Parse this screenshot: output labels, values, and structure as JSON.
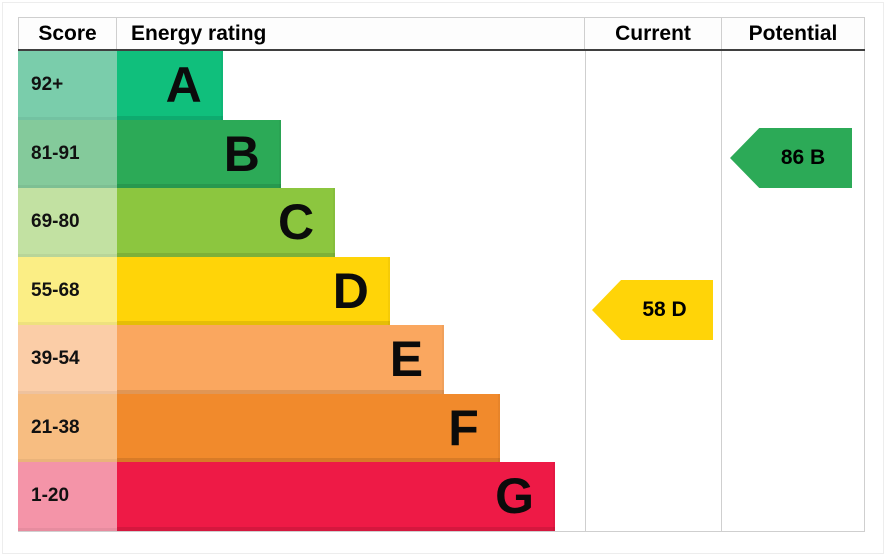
{
  "header": {
    "score": "Score",
    "rating": "Energy rating",
    "current": "Current",
    "potential": "Potential"
  },
  "bands": [
    {
      "letter": "A",
      "score": "92+",
      "bar_color": "#10bf7c",
      "tint_color": "#7acdab",
      "width_pct": 22.6
    },
    {
      "letter": "B",
      "score": "81-91",
      "bar_color": "#2caa57",
      "tint_color": "#84ca9b",
      "width_pct": 35.0
    },
    {
      "letter": "C",
      "score": "69-80",
      "bar_color": "#8cc63f",
      "tint_color": "#c2e1a2",
      "width_pct": 46.6
    },
    {
      "letter": "D",
      "score": "55-68",
      "bar_color": "#ffd408",
      "tint_color": "#fbee85",
      "width_pct": 58.3
    },
    {
      "letter": "E",
      "score": "39-54",
      "bar_color": "#faa75f",
      "tint_color": "#fbcda7",
      "width_pct": 69.9
    },
    {
      "letter": "F",
      "score": "21-38",
      "bar_color": "#f18a2c",
      "tint_color": "#f7bd81",
      "width_pct": 81.8
    },
    {
      "letter": "G",
      "score": "1-20",
      "bar_color": "#ee1a46",
      "tint_color": "#f494a8",
      "width_pct": 93.6
    }
  ],
  "current": {
    "label": "58 D",
    "value": 58,
    "band": "D",
    "color": "#ffd408"
  },
  "potential": {
    "label": "86 B",
    "value": 86,
    "band": "B",
    "color": "#2caa57"
  },
  "chart_data": {
    "type": "bar",
    "orientation": "horizontal",
    "title": "",
    "columns": [
      "Score",
      "Energy rating",
      "Current",
      "Potential"
    ],
    "categories": [
      "A",
      "B",
      "C",
      "D",
      "E",
      "F",
      "G"
    ],
    "score_ranges": [
      "92+",
      "81-91",
      "69-80",
      "55-68",
      "39-54",
      "21-38",
      "1-20"
    ],
    "bar_lengths_pct": [
      22.6,
      35.0,
      46.6,
      58.3,
      69.9,
      81.8,
      93.6
    ],
    "band_colors": [
      "#10bf7c",
      "#2caa57",
      "#8cc63f",
      "#ffd408",
      "#faa75f",
      "#f18a2c",
      "#ee1a46"
    ],
    "band_tint_colors": [
      "#7acdab",
      "#84ca9b",
      "#c2e1a2",
      "#fbee85",
      "#fbcda7",
      "#f7bd81",
      "#f494a8"
    ],
    "markers": [
      {
        "column": "Current",
        "label": "58 D",
        "value": 58,
        "band": "D",
        "color": "#ffd408"
      },
      {
        "column": "Potential",
        "label": "86 B",
        "value": 86,
        "band": "B",
        "color": "#2caa57"
      }
    ],
    "legend": false,
    "grid": false
  }
}
